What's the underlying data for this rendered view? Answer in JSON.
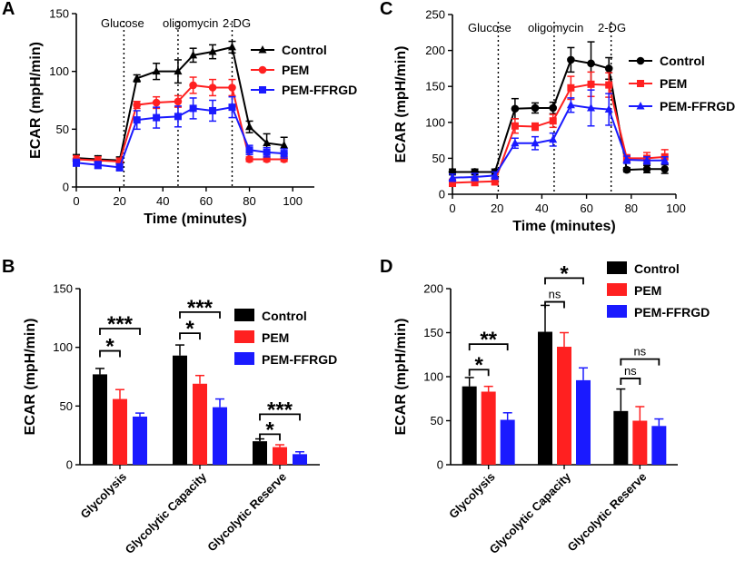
{
  "colors": {
    "control": "#000000",
    "pem": "#ff2020",
    "pem_ffrgd": "#1a1aff",
    "axis": "#000000"
  },
  "chart_data": [
    {
      "panel": "A",
      "type": "line",
      "xlabel": "Time (minutes)",
      "ylabel": "ECAR (mpH/min)",
      "xlim": [
        0,
        110
      ],
      "ylim": [
        0,
        150
      ],
      "xticks": [
        0,
        20,
        40,
        60,
        80,
        100
      ],
      "yticks": [
        0,
        50,
        100,
        150
      ],
      "phase_labels": [
        "Glucose",
        "oligomycin",
        "2-DG"
      ],
      "phase_lines_x": [
        22,
        47,
        72
      ],
      "x": [
        0,
        10,
        20,
        28,
        37,
        47,
        54,
        63,
        72,
        80,
        88,
        96
      ],
      "series": [
        {
          "name": "Control",
          "marker": "triangle",
          "values": [
            25,
            24,
            23,
            94,
            100,
            100,
            114,
            117,
            121,
            52,
            38,
            36
          ],
          "errors": [
            3,
            3,
            3,
            3,
            7,
            10,
            6,
            6,
            5,
            5,
            8,
            7
          ]
        },
        {
          "name": "PEM",
          "marker": "circle",
          "values": [
            24,
            23,
            22,
            71,
            73,
            74,
            88,
            86,
            86,
            24,
            24,
            24
          ],
          "errors": [
            3,
            3,
            3,
            3,
            5,
            5,
            7,
            7,
            7,
            2,
            2,
            2
          ]
        },
        {
          "name": "PEM-FFRGD",
          "marker": "square",
          "values": [
            21,
            19,
            17,
            58,
            60,
            61,
            68,
            66,
            69,
            32,
            30,
            29
          ],
          "errors": [
            3,
            3,
            3,
            8,
            9,
            9,
            9,
            9,
            9,
            4,
            4,
            4
          ]
        }
      ]
    },
    {
      "panel": "C",
      "type": "line",
      "xlabel": "Time (minutes)",
      "ylabel": "ECAR (mpH/min)",
      "xlim": [
        0,
        100
      ],
      "ylim": [
        0,
        250
      ],
      "xticks": [
        0,
        20,
        40,
        60,
        80,
        100
      ],
      "yticks": [
        0,
        50,
        100,
        150,
        200,
        250
      ],
      "phase_labels": [
        "Glucose",
        "oligomycin",
        "2-DG"
      ],
      "phase_lines_x": [
        20.5,
        45.5,
        71
      ],
      "x": [
        0,
        10,
        19,
        28,
        37,
        45,
        53,
        62,
        70,
        78,
        87,
        95
      ],
      "series": [
        {
          "name": "Control",
          "marker": "circle",
          "values": [
            31,
            31,
            31,
            119,
            120,
            120,
            187,
            182,
            175,
            34,
            35,
            35
          ],
          "errors": [
            4,
            4,
            4,
            14,
            7,
            8,
            17,
            30,
            15,
            3,
            5,
            6
          ]
        },
        {
          "name": "PEM",
          "marker": "square",
          "values": [
            16,
            17,
            18,
            95,
            94,
            102,
            148,
            153,
            152,
            50,
            50,
            52
          ],
          "errors": [
            5,
            5,
            5,
            10,
            5,
            9,
            16,
            17,
            17,
            5,
            8,
            10
          ]
        },
        {
          "name": "PEM-FFRGD",
          "marker": "triangle",
          "values": [
            23,
            24,
            26,
            71,
            71,
            76,
            124,
            120,
            118,
            48,
            47,
            47
          ],
          "errors": [
            5,
            5,
            5,
            7,
            9,
            9,
            10,
            25,
            22,
            5,
            5,
            5
          ]
        }
      ]
    },
    {
      "panel": "B",
      "type": "bar",
      "ylabel": "ECAR (mpH/min)",
      "ylim": [
        0,
        150
      ],
      "yticks": [
        0,
        50,
        100,
        150
      ],
      "categories": [
        "Glycolysis",
        "Glycolytic Capacity",
        "Glycolytic Reserve"
      ],
      "series": [
        {
          "name": "Control",
          "values": [
            77,
            93,
            20
          ],
          "errors": [
            5,
            9,
            2
          ]
        },
        {
          "name": "PEM",
          "values": [
            56,
            69,
            15
          ],
          "errors": [
            8,
            7,
            2
          ]
        },
        {
          "name": "PEM-FFRGD",
          "values": [
            41,
            49,
            9
          ],
          "errors": [
            3,
            7,
            2
          ]
        }
      ],
      "significance": [
        {
          "label": "*",
          "category": 0,
          "from": 0,
          "to": 1,
          "y": 97
        },
        {
          "label": "***",
          "category": 0,
          "from": 0,
          "to": 2,
          "y": 116
        },
        {
          "label": "*",
          "category": 1,
          "from": 0,
          "to": 1,
          "y": 112
        },
        {
          "label": "***",
          "category": 1,
          "from": 0,
          "to": 2,
          "y": 130
        },
        {
          "label": "*",
          "category": 2,
          "from": 0,
          "to": 1,
          "y": 26
        },
        {
          "label": "***",
          "category": 2,
          "from": 0,
          "to": 2,
          "y": 43
        }
      ]
    },
    {
      "panel": "D",
      "type": "bar",
      "ylabel": "ECAR (mpH/min)",
      "ylim": [
        0,
        200
      ],
      "yticks": [
        0,
        50,
        100,
        150,
        200
      ],
      "categories": [
        "Glycolysis",
        "Glycolytic Capacity",
        "Glycolytic Reserve"
      ],
      "series": [
        {
          "name": "Control",
          "values": [
            89,
            151,
            61
          ],
          "errors": [
            10,
            30,
            25
          ]
        },
        {
          "name": "PEM",
          "values": [
            83,
            134,
            50
          ],
          "errors": [
            6,
            16,
            16
          ]
        },
        {
          "name": "PEM-FFRGD",
          "values": [
            51,
            96,
            44
          ],
          "errors": [
            8,
            14,
            8
          ]
        }
      ],
      "significance": [
        {
          "label": "*",
          "category": 0,
          "from": 0,
          "to": 1,
          "y": 108
        },
        {
          "label": "**",
          "category": 0,
          "from": 0,
          "to": 2,
          "y": 137
        },
        {
          "label": "ns",
          "category": 1,
          "from": 0,
          "to": 1,
          "y": 185
        },
        {
          "label": "*",
          "category": 1,
          "from": 0,
          "to": 2,
          "y": 212
        },
        {
          "label": "ns",
          "category": 2,
          "from": 0,
          "to": 1,
          "y": 98
        },
        {
          "label": "ns",
          "category": 2,
          "from": 0,
          "to": 2,
          "y": 120
        }
      ]
    }
  ]
}
